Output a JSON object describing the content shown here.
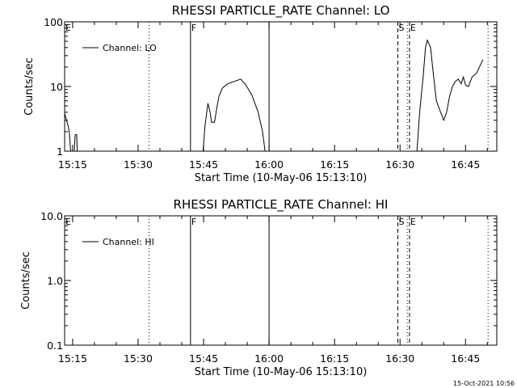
{
  "timestamp": "15-Oct-2021 10:56",
  "chart_data": [
    {
      "type": "line",
      "title": "RHESSI PARTICLE_RATE Channel: LO",
      "xlabel": "Start Time (10-May-06 15:13:10)",
      "ylabel": "Counts/sec",
      "yscale": "log",
      "ylim": [
        1,
        100
      ],
      "xlim": [
        "15:13:10",
        "16:52:10"
      ],
      "xticks": [
        "15:15",
        "15:30",
        "15:45",
        "16:00",
        "16:15",
        "16:30",
        "16:45"
      ],
      "yticks": [
        "1",
        "10",
        "100"
      ],
      "legend": {
        "label": "Channel: LO",
        "placement": "top-left"
      },
      "markers": [
        {
          "label": "E",
          "time": "15:13:10",
          "style": "solid"
        },
        {
          "label": "",
          "time": "15:32:30",
          "style": "dotted"
        },
        {
          "label": "F",
          "time": "15:42:00",
          "style": "solid"
        },
        {
          "label": "",
          "time": "16:00:00",
          "style": "solid"
        },
        {
          "label": "S",
          "time": "16:29:30",
          "style": "dashed"
        },
        {
          "label": "E",
          "time": "16:32:10",
          "style": "dashed"
        },
        {
          "label": "",
          "time": "16:31:40",
          "style": "dotted"
        },
        {
          "label": "",
          "time": "16:50:10",
          "style": "dotted"
        }
      ],
      "series": [
        {
          "name": "Channel: LO",
          "segments": [
            [
              [
                "15:13:10",
                3.8
              ],
              [
                "15:13:30",
                3.2
              ],
              [
                "15:14:00",
                2.4
              ],
              [
                "15:14:15",
                1.9
              ],
              [
                "15:14:30",
                1.1
              ],
              [
                "15:14:40",
                0.9
              ]
            ],
            [
              [
                "15:15:20",
                0.9
              ],
              [
                "15:15:35",
                1.8
              ],
              [
                "15:15:55",
                1.8
              ],
              [
                "15:16:05",
                0.9
              ]
            ],
            [
              [
                "15:44:50",
                0.9
              ],
              [
                "15:45:20",
                2.5
              ],
              [
                "15:46:00",
                5.5
              ],
              [
                "15:46:30",
                4.0
              ],
              [
                "15:46:50",
                2.8
              ],
              [
                "15:47:30",
                2.8
              ],
              [
                "15:48:00",
                4.5
              ],
              [
                "15:48:30",
                7.0
              ],
              [
                "15:49:20",
                9.5
              ],
              [
                "15:50:30",
                11.0
              ],
              [
                "15:52:00",
                12.0
              ],
              [
                "15:53:30",
                13.0
              ],
              [
                "15:54:30",
                11.0
              ],
              [
                "15:56:00",
                7.5
              ],
              [
                "15:57:30",
                4.0
              ],
              [
                "15:58:30",
                2.0
              ],
              [
                "15:59:10",
                0.9
              ]
            ],
            [
              [
                "16:33:50",
                0.9
              ],
              [
                "16:34:30",
                4.0
              ],
              [
                "16:35:20",
                15.0
              ],
              [
                "16:35:50",
                40.0
              ],
              [
                "16:36:15",
                52.0
              ],
              [
                "16:37:00",
                40.0
              ],
              [
                "16:37:40",
                15.0
              ],
              [
                "16:38:20",
                6.0
              ],
              [
                "16:39:00",
                4.5
              ],
              [
                "16:39:40",
                3.5
              ],
              [
                "16:40:00",
                3.0
              ],
              [
                "16:40:40",
                4.0
              ],
              [
                "16:41:20",
                7.0
              ],
              [
                "16:42:00",
                10.0
              ],
              [
                "16:42:40",
                12.0
              ],
              [
                "16:43:20",
                13.0
              ],
              [
                "16:44:00",
                11.0
              ],
              [
                "16:44:30",
                14.0
              ],
              [
                "16:45:00",
                10.5
              ],
              [
                "16:45:40",
                10.0
              ],
              [
                "16:46:30",
                14.0
              ],
              [
                "16:47:30",
                16.0
              ],
              [
                "16:48:20",
                21.0
              ],
              [
                "16:49:00",
                26.0
              ]
            ]
          ]
        }
      ]
    },
    {
      "type": "line",
      "title": "RHESSI PARTICLE_RATE Channel: HI",
      "xlabel": "Start Time (10-May-06 15:13:10)",
      "ylabel": "Counts/sec",
      "yscale": "log",
      "ylim": [
        0.1,
        10.0
      ],
      "xlim": [
        "15:13:10",
        "16:52:10"
      ],
      "xticks": [
        "15:15",
        "15:30",
        "15:45",
        "16:00",
        "16:15",
        "16:30",
        "16:45"
      ],
      "yticks": [
        "0.1",
        "1.0",
        "10.0"
      ],
      "legend": {
        "label": "Channel: HI",
        "placement": "top-left"
      },
      "markers": [
        {
          "label": "E",
          "time": "15:13:10",
          "style": "solid"
        },
        {
          "label": "",
          "time": "15:32:30",
          "style": "dotted"
        },
        {
          "label": "F",
          "time": "15:42:00",
          "style": "solid"
        },
        {
          "label": "",
          "time": "16:00:00",
          "style": "solid"
        },
        {
          "label": "S",
          "time": "16:29:30",
          "style": "dashed"
        },
        {
          "label": "E",
          "time": "16:32:10",
          "style": "dashed"
        },
        {
          "label": "",
          "time": "16:31:40",
          "style": "dotted"
        },
        {
          "label": "",
          "time": "16:50:10",
          "style": "dotted"
        }
      ],
      "series": [
        {
          "name": "Channel: HI",
          "segments": []
        }
      ]
    }
  ]
}
